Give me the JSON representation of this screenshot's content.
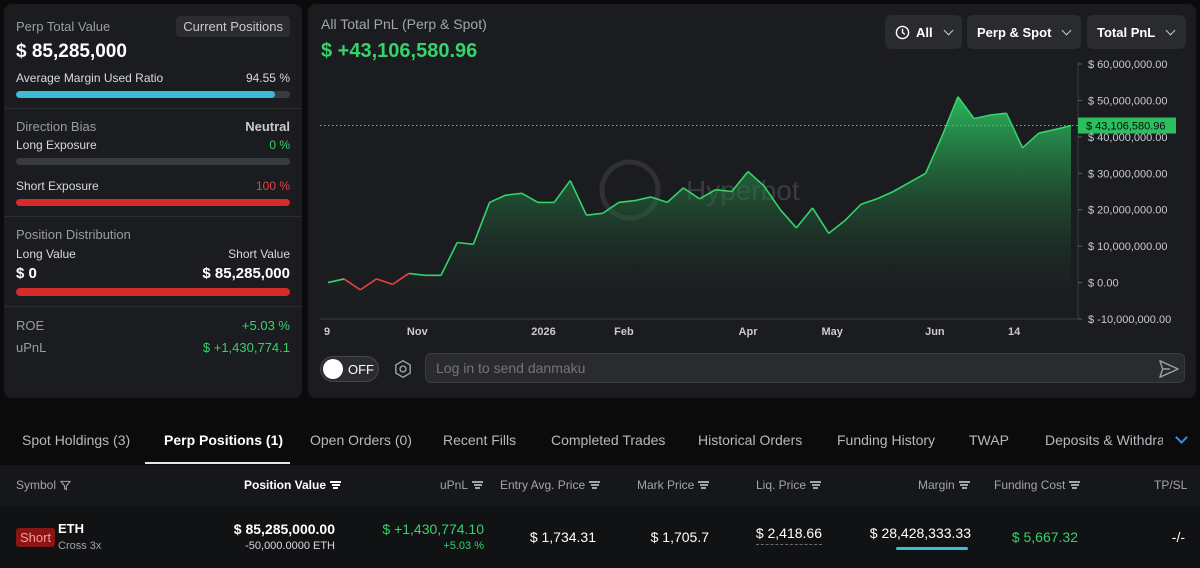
{
  "summary": {
    "perp_total_value_label": "Perp Total Value",
    "current_positions_label": "Current Positions",
    "perp_total_value": "$ 85,285,000",
    "avg_margin_label": "Average Margin Used Ratio",
    "avg_margin_value": "94.55 %",
    "avg_margin_ratio": 0.9455,
    "direction_bias_label": "Direction Bias",
    "direction_bias_value": "Neutral",
    "long_exposure_label": "Long Exposure",
    "long_exposure_value": "0 %",
    "long_exposure_ratio": 0,
    "short_exposure_label": "Short Exposure",
    "short_exposure_value": "100 %",
    "short_exposure_ratio": 1.0,
    "position_distribution_label": "Position Distribution",
    "long_value_label": "Long Value",
    "short_value_label": "Short Value",
    "long_value": "$ 0",
    "short_value": "$ 85,285,000",
    "roe_label": "ROE",
    "roe_value": "+5.03 %",
    "upnl_label": "uPnL",
    "upnl_value": "$ +1,430,774.1"
  },
  "chart_panel": {
    "title": "All Total PnL (Perp & Spot)",
    "value": "$ +43,106,580.96",
    "filter_all": "All",
    "filter_type": "Perp & Spot",
    "filter_metric": "Total PnL",
    "watermark": "Hyperbot",
    "toggle_label": "OFF",
    "danmaku_placeholder": "Log in to send danmaku"
  },
  "chart_data": {
    "type": "area",
    "title": "",
    "xlabel": "",
    "ylabel": "",
    "x_tick_labels": [
      "9",
      "Nov",
      "2026",
      "Feb",
      "Apr",
      "May",
      "Jun",
      "14"
    ],
    "y_tick_labels": [
      "$ 60,000,000.00",
      "$ 50,000,000.00",
      "$ 40,000,000.00",
      "$ 30,000,000.00",
      "$ 20,000,000.00",
      "$ 10,000,000.00",
      "$ 0.00",
      "$ -10,000,000.00"
    ],
    "ylim": [
      -10000000,
      60000000
    ],
    "current_value_label": "$ 43,106,580.96",
    "current_value": 43106580.96,
    "series": [
      {
        "values": [
          0,
          1000000,
          -2000000,
          1000000,
          -500000,
          2500000,
          2000000,
          2000000,
          11000000,
          10500000,
          22000000,
          24000000,
          24500000,
          22000000,
          22000000,
          28000000,
          18500000,
          19000000,
          22000000,
          22500000,
          23500000,
          22000000,
          26000000,
          23000000,
          25500000,
          25000000,
          30500000,
          26500000,
          20000000,
          15000000,
          20500000,
          13500000,
          17000000,
          21500000,
          23000000,
          25000000,
          27500000,
          30000000,
          40000000,
          51000000,
          45000000,
          46000000,
          46500000,
          37000000,
          41000000,
          42000000,
          43106580.96
        ]
      }
    ],
    "colors": {
      "positive": "#34d36b",
      "negative": "#e84242"
    }
  },
  "tabs": [
    {
      "label": "Spot Holdings (3)"
    },
    {
      "label": "Perp Positions (1)"
    },
    {
      "label": "Open Orders (0)"
    },
    {
      "label": "Recent Fills"
    },
    {
      "label": "Completed Trades"
    },
    {
      "label": "Historical Orders"
    },
    {
      "label": "Funding History"
    },
    {
      "label": "TWAP"
    },
    {
      "label": "Deposits & Withdraw"
    }
  ],
  "table": {
    "headers": {
      "symbol": "Symbol",
      "position_value": "Position Value",
      "upnl": "uPnL",
      "entry": "Entry Avg. Price",
      "mark": "Mark Price",
      "liq": "Liq. Price",
      "margin": "Margin",
      "funding": "Funding Cost",
      "tpsl": "TP/SL"
    },
    "row": {
      "side": "Short",
      "symbol": "ETH",
      "leverage": "Cross 3x",
      "position_value": "$ 85,285,000.00",
      "position_size": "-50,000.0000 ETH",
      "upnl": "$ +1,430,774.10",
      "upnl_pct": "+5.03 %",
      "entry": "$ 1,734.31",
      "mark": "$ 1,705.7",
      "liq": "$ 2,418.66",
      "margin": "$ 28,428,333.33",
      "funding": "$ 5,667.32",
      "tpsl": "-/-"
    }
  }
}
